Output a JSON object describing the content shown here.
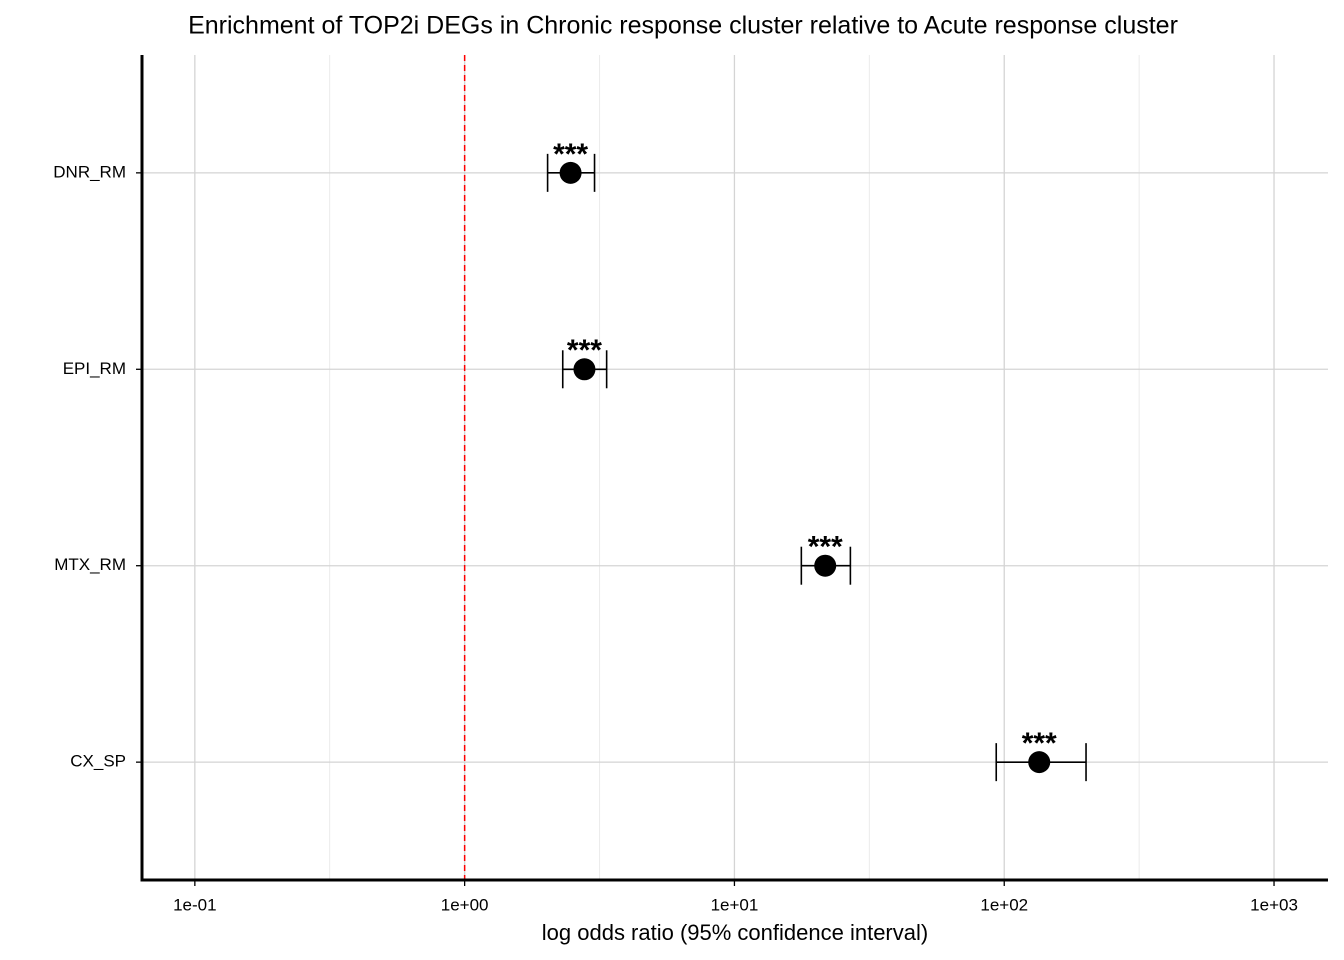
{
  "chart_data": {
    "type": "forest",
    "title": "Enrichment of TOP2i DEGs in Chronic response cluster relative to Acute response cluster",
    "x_label": "log odds ratio (95% confidence interval)",
    "categories": [
      "DNR_RM",
      "EPI_RM",
      "MTX_RM",
      "CX_SP"
    ],
    "values": [
      2.47,
      2.78,
      21.7,
      134.8
    ],
    "lower": [
      2.03,
      2.31,
      17.7,
      93.4
    ],
    "upper": [
      3.03,
      3.36,
      26.9,
      201
    ],
    "annotations": [
      "***",
      "***",
      "***",
      "***"
    ],
    "color": "#000000",
    "x_log": true,
    "xlim": [
      0.0637,
      1585
    ],
    "xticks": [
      {
        "value": 0.1,
        "label": "1e-01"
      },
      {
        "value": 1,
        "label": "1e+00"
      },
      {
        "value": 10,
        "label": "1e+01"
      },
      {
        "value": 100,
        "label": "1e+02"
      },
      {
        "value": 1000,
        "label": "1e+03"
      }
    ],
    "xminor": [
      0.316,
      3.162,
      31.62,
      316.2
    ],
    "ref_line": 1,
    "ref_color": "#ff0000",
    "grid": true
  }
}
